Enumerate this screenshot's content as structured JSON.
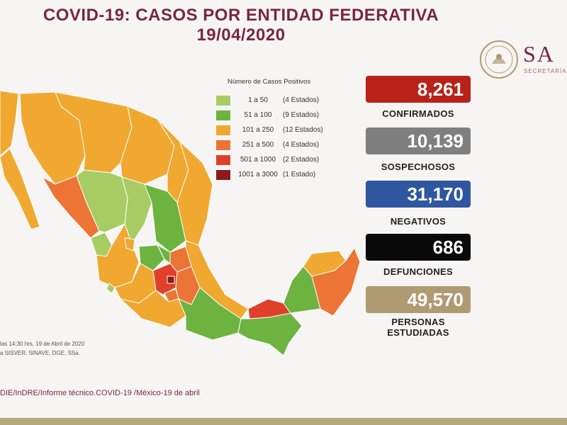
{
  "header": {
    "title_line1": "COVID-19: CASOS POR ENTIDAD FEDERATIVA",
    "title_line2": "19/04/2020"
  },
  "logo": {
    "brand": "SA",
    "subtitle": "SECRETARÍA"
  },
  "legend": {
    "title": "Número de Casos Positivos",
    "items": [
      {
        "range": "1 a 50",
        "count": "(4 Estados)",
        "color": "#a6cc63"
      },
      {
        "range": "51 a 100",
        "count": "(9 Estados)",
        "color": "#6db33f"
      },
      {
        "range": "101 a 250",
        "count": "(12 Estados)",
        "color": "#f0a830"
      },
      {
        "range": "251 a 500",
        "count": "(4 Estados)",
        "color": "#ec7434"
      },
      {
        "range": "501 a 1000",
        "count": "(2 Estados)",
        "color": "#e0402a"
      },
      {
        "range": "1001 a 3000",
        "count": "(1 Estado)",
        "color": "#8b1a1a"
      }
    ]
  },
  "stats": [
    {
      "value": "8,261",
      "label": "CONFIRMADOS",
      "color": "#b82219"
    },
    {
      "value": "10,139",
      "label": "SOSPECHOSOS",
      "color": "#7f7f7f"
    },
    {
      "value": "31,170",
      "label": "NEGATIVOS",
      "color": "#2f57a0"
    },
    {
      "value": "686",
      "label": "DEFUNCIONES",
      "color": "#0a0a0a"
    },
    {
      "value": "49,570",
      "label": "PERSONAS ESTUDIADAS",
      "label_line1": "PERSONAS",
      "label_line2": "ESTUDIADAS",
      "color": "#b09a72"
    }
  ],
  "source": {
    "line1": "las 14:30 hrs, 19 de Abril de 2020",
    "line2": "a SISVER, SINAVE, DGE, SSa."
  },
  "footer": "DIE/InDRE/Informe técnico.COVID-19 /México-19 de abril"
}
